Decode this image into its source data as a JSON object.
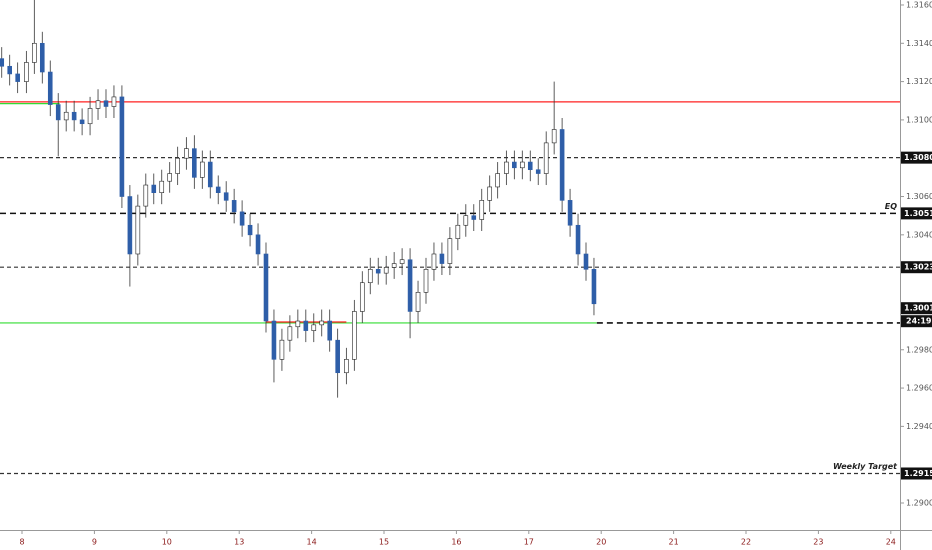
{
  "chart_data": {
    "type": "candlestick",
    "up_color": "#ffffff",
    "down_color": "#2e5ea8",
    "wick_color": "#333333",
    "xlim": [
      -0.304,
      12.127
    ],
    "ylim": [
      1.28859,
      1.31626
    ],
    "xticks": [
      {
        "value": 0,
        "label": "8"
      },
      {
        "value": 1,
        "label": "9"
      },
      {
        "value": 2,
        "label": "10"
      },
      {
        "value": 3,
        "label": "13"
      },
      {
        "value": 4,
        "label": "14"
      },
      {
        "value": 5,
        "label": "15"
      },
      {
        "value": 6,
        "label": "16"
      },
      {
        "value": 7,
        "label": "17"
      },
      {
        "value": 8,
        "label": "20"
      },
      {
        "value": 9,
        "label": "21"
      },
      {
        "value": 10,
        "label": "22"
      },
      {
        "value": 11,
        "label": "23"
      },
      {
        "value": 12,
        "label": "24"
      }
    ],
    "yticks": [
      {
        "value": 1.316,
        "label": "1.31600"
      },
      {
        "value": 1.314,
        "label": "1.31400"
      },
      {
        "value": 1.312,
        "label": "1.31200"
      },
      {
        "value": 1.31,
        "label": "1.31000"
      },
      {
        "value": 1.306,
        "label": "1.30600"
      },
      {
        "value": 1.304,
        "label": "1.30400"
      },
      {
        "value": 1.298,
        "label": "1.29800"
      },
      {
        "value": 1.296,
        "label": "1.29600"
      },
      {
        "value": 1.294,
        "label": "1.29400"
      },
      {
        "value": 1.29,
        "label": "1.29000"
      }
    ],
    "x": [
      -0.28,
      -0.17,
      -0.06,
      0.06,
      0.17,
      0.28,
      0.39,
      0.5,
      0.61,
      0.72,
      0.83,
      0.94,
      1.05,
      1.16,
      1.27,
      1.38,
      1.49,
      1.6,
      1.71,
      1.82,
      1.93,
      2.04,
      2.15,
      2.27,
      2.38,
      2.49,
      2.6,
      2.71,
      2.82,
      2.93,
      3.04,
      3.15,
      3.26,
      3.37,
      3.48,
      3.59,
      3.7,
      3.81,
      3.92,
      4.03,
      4.14,
      4.25,
      4.36,
      4.48,
      4.59,
      4.7,
      4.81,
      4.92,
      5.03,
      5.14,
      5.25,
      5.36,
      5.47,
      5.58,
      5.69,
      5.8,
      5.91,
      6.02,
      6.13,
      6.24,
      6.35,
      6.46,
      6.57,
      6.69,
      6.8,
      6.91,
      7.02,
      7.13,
      7.24,
      7.35,
      7.46,
      7.57,
      7.68,
      7.79,
      7.9
    ],
    "open": [
      1.3132,
      1.3128,
      1.3124,
      1.312,
      1.313,
      1.314,
      1.3125,
      1.3108,
      1.31,
      1.3104,
      1.31,
      1.3098,
      1.3106,
      1.311,
      1.3107,
      1.3112,
      1.306,
      1.303,
      1.3055,
      1.3066,
      1.3062,
      1.3068,
      1.3072,
      1.308,
      1.3085,
      1.307,
      1.3078,
      1.3065,
      1.3062,
      1.3058,
      1.3052,
      1.3045,
      1.304,
      1.303,
      1.2995,
      1.2975,
      1.2985,
      1.2992,
      1.2995,
      1.299,
      1.2993,
      1.2995,
      1.2985,
      1.2968,
      1.2975,
      1.3,
      1.3015,
      1.3022,
      1.302,
      1.3023,
      1.3025,
      1.3027,
      1.3,
      1.301,
      1.3022,
      1.303,
      1.3025,
      1.3038,
      1.3045,
      1.305,
      1.3048,
      1.3058,
      1.3065,
      1.3072,
      1.3078,
      1.3075,
      1.3078,
      1.3074,
      1.3072,
      1.3088,
      1.3095,
      1.3058,
      1.3045,
      1.303,
      1.3022
    ],
    "high": [
      1.3138,
      1.3134,
      1.313,
      1.3136,
      1.3165,
      1.3146,
      1.3131,
      1.3114,
      1.311,
      1.311,
      1.3106,
      1.3112,
      1.3116,
      1.3116,
      1.3118,
      1.3118,
      1.3066,
      1.3061,
      1.3072,
      1.3072,
      1.3074,
      1.3078,
      1.3086,
      1.3091,
      1.3092,
      1.3084,
      1.3084,
      1.3071,
      1.3068,
      1.3064,
      1.3058,
      1.3051,
      1.3046,
      1.3036,
      1.3001,
      1.2991,
      1.2998,
      1.3001,
      1.3001,
      1.2999,
      1.3001,
      1.3001,
      1.2991,
      1.2981,
      1.3006,
      1.3021,
      1.3028,
      1.3028,
      1.3029,
      1.3031,
      1.3033,
      1.3033,
      1.3016,
      1.3028,
      1.3036,
      1.3036,
      1.3044,
      1.3051,
      1.3056,
      1.3056,
      1.3064,
      1.3071,
      1.3078,
      1.3084,
      1.3084,
      1.3084,
      1.3084,
      1.308,
      1.3094,
      1.312,
      1.3101,
      1.3064,
      1.3051,
      1.3036,
      1.3028
    ],
    "low": [
      1.3122,
      1.3118,
      1.3114,
      1.3114,
      1.3124,
      1.3119,
      1.3102,
      1.3081,
      1.3094,
      1.3094,
      1.3092,
      1.3092,
      1.31,
      1.3101,
      1.3101,
      1.3054,
      1.3013,
      1.3024,
      1.3049,
      1.3056,
      1.3056,
      1.3062,
      1.3066,
      1.3074,
      1.3064,
      1.3064,
      1.3059,
      1.3056,
      1.3052,
      1.3046,
      1.3039,
      1.3034,
      1.3024,
      1.2989,
      1.2963,
      1.2969,
      1.2979,
      1.2986,
      1.2984,
      1.2984,
      1.2987,
      1.2979,
      1.2955,
      1.2962,
      1.2969,
      1.2994,
      1.3009,
      1.3014,
      1.3014,
      1.3017,
      1.3019,
      1.2986,
      1.2994,
      1.3004,
      1.3016,
      1.3019,
      1.3019,
      1.3032,
      1.3039,
      1.3042,
      1.3042,
      1.3052,
      1.3059,
      1.3066,
      1.3069,
      1.3069,
      1.3068,
      1.3066,
      1.3066,
      1.3082,
      1.3052,
      1.3039,
      1.3024,
      1.3016,
      1.2998
    ],
    "close": [
      1.3128,
      1.3124,
      1.312,
      1.313,
      1.314,
      1.3125,
      1.3108,
      1.31,
      1.3104,
      1.31,
      1.3098,
      1.3106,
      1.311,
      1.3107,
      1.3112,
      1.306,
      1.303,
      1.3055,
      1.3066,
      1.3062,
      1.3068,
      1.3072,
      1.308,
      1.3085,
      1.307,
      1.3078,
      1.3065,
      1.3062,
      1.3058,
      1.3052,
      1.3045,
      1.304,
      1.303,
      1.2995,
      1.2975,
      1.2985,
      1.2992,
      1.2995,
      1.299,
      1.2993,
      1.2995,
      1.2985,
      1.2968,
      1.2975,
      1.3,
      1.3015,
      1.3022,
      1.302,
      1.3023,
      1.3025,
      1.3027,
      1.3,
      1.301,
      1.3022,
      1.303,
      1.3025,
      1.3038,
      1.3045,
      1.305,
      1.3048,
      1.3058,
      1.3065,
      1.3072,
      1.3078,
      1.3075,
      1.3078,
      1.3074,
      1.3072,
      1.3088,
      1.3095,
      1.3058,
      1.3045,
      1.303,
      1.3022,
      1.3004
    ],
    "levels": [
      {
        "price": 1.31094,
        "color": "#ff2020",
        "dash": false,
        "from": -0.304,
        "to": 12.127
      },
      {
        "price": 1.31085,
        "color": "#33dd33",
        "dash": false,
        "from": -0.304,
        "to": 0.52
      },
      {
        "price": 1.2994,
        "color": "#33dd33",
        "dash": false,
        "from": -0.304,
        "to": 7.94
      },
      {
        "price": 1.29945,
        "color": "#ff2020",
        "dash": false,
        "from": 3.37,
        "to": 4.48
      },
      {
        "price": 1.30803,
        "color": "#333333",
        "dash": true,
        "from": -0.304,
        "to": 12.127
      },
      {
        "price": 1.30512,
        "color": "#111111",
        "dash": true,
        "bold": true,
        "from": -0.304,
        "to": 12.127,
        "label": "EQ"
      },
      {
        "price": 1.30231,
        "color": "#333333",
        "dash": true,
        "from": -0.304,
        "to": 12.127
      },
      {
        "price": 1.29154,
        "color": "#333333",
        "dash": true,
        "from": -0.304,
        "to": 12.127,
        "label": "Weekly Target"
      },
      {
        "price": 1.2994,
        "color": "#111111",
        "dash": true,
        "bold": true,
        "from": 7.94,
        "to": 12.127
      }
    ],
    "price_labels": [
      {
        "value": 1.30803,
        "label": "1.30803"
      },
      {
        "value": 1.30512,
        "label": "1.30512"
      },
      {
        "value": 1.30231,
        "label": "1.30231"
      },
      {
        "value": 1.30017,
        "label": "1.30017"
      },
      {
        "value": 1.29154,
        "label": "1.29154"
      }
    ],
    "countdown": "24:19"
  }
}
